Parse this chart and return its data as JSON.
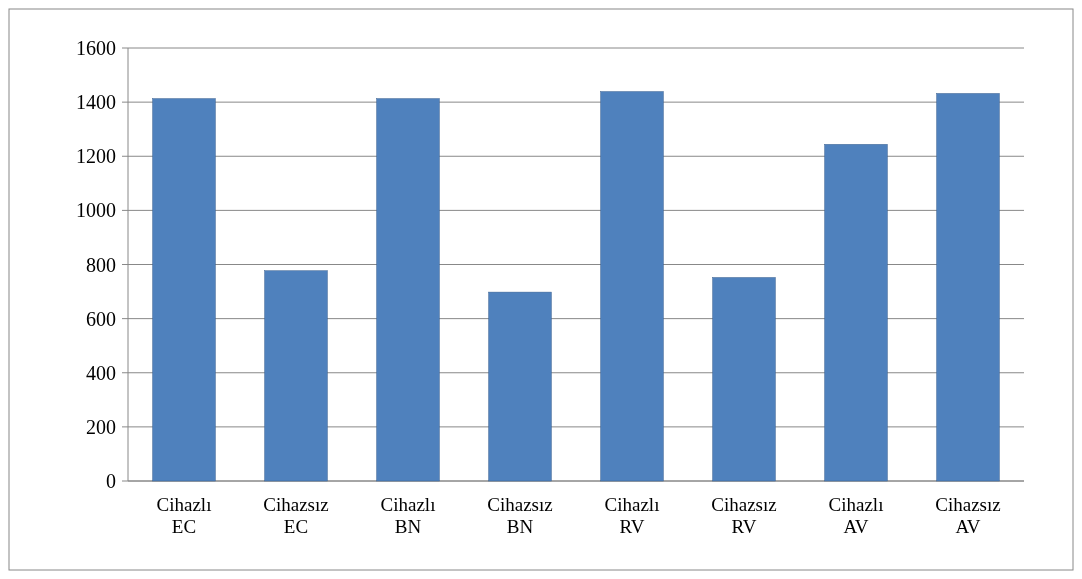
{
  "chart_data": {
    "type": "bar",
    "categories": [
      "Cihazlı EC",
      "Cihazsız EC",
      "Cihazlı BN",
      "Cihazsız BN",
      "Cihazlı RV",
      "Cihazsız RV",
      "Cihazlı AV",
      "Cihazsız AV"
    ],
    "values": [
      1413,
      777,
      1413,
      698,
      1439,
      752,
      1244,
      1432
    ],
    "color": "#4f81bd",
    "ylim": [
      0,
      1600
    ],
    "yticks": [
      0,
      200,
      400,
      600,
      800,
      1000,
      1200,
      1400,
      1600
    ],
    "grid": "y"
  }
}
